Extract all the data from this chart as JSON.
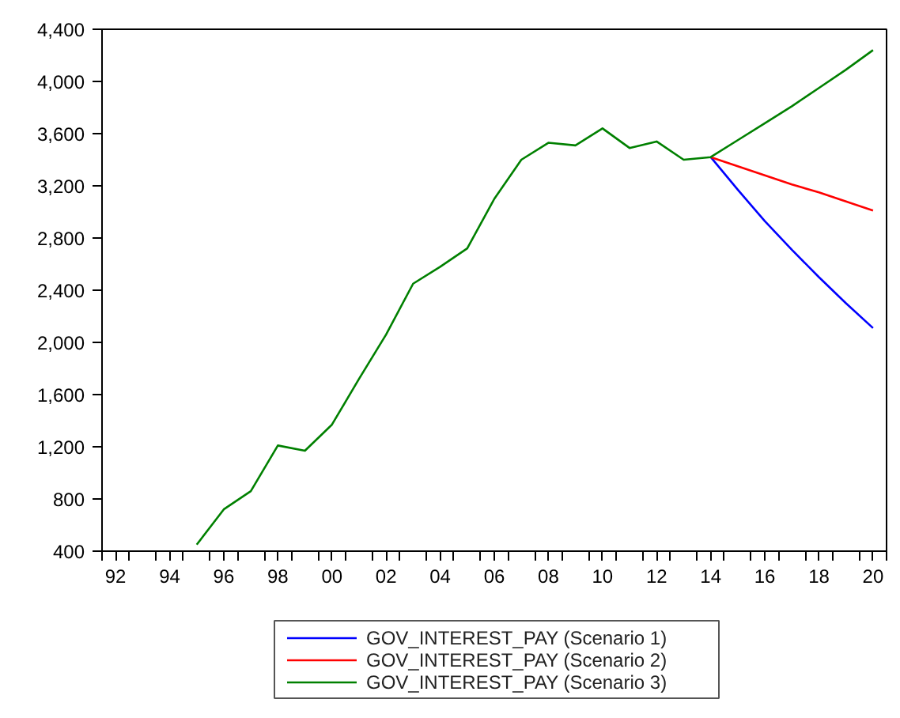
{
  "chart_data": {
    "type": "line",
    "x": [
      1995,
      1996,
      1997,
      1998,
      1999,
      2000,
      2001,
      2002,
      2003,
      2004,
      2005,
      2006,
      2007,
      2008,
      2009,
      2010,
      2011,
      2012,
      2013,
      2014,
      2015,
      2016,
      2017,
      2018,
      2019,
      2020
    ],
    "series": [
      {
        "name": "GOV_INTEREST_PAY (Scenario 1)",
        "color": "#0000ff",
        "values": [
          null,
          null,
          null,
          null,
          null,
          null,
          null,
          null,
          null,
          null,
          null,
          null,
          null,
          null,
          null,
          null,
          null,
          null,
          null,
          3420,
          3170,
          2930,
          2710,
          2500,
          2300,
          2110
        ]
      },
      {
        "name": "GOV_INTEREST_PAY (Scenario 2)",
        "color": "#ff0000",
        "values": [
          null,
          null,
          null,
          null,
          null,
          null,
          null,
          null,
          null,
          null,
          null,
          null,
          null,
          null,
          null,
          null,
          null,
          null,
          null,
          3420,
          3350,
          3280,
          3210,
          3150,
          3080,
          3010
        ]
      },
      {
        "name": "GOV_INTEREST_PAY (Scenario 3)",
        "color": "#008000",
        "values": [
          450,
          720,
          860,
          1210,
          1170,
          1370,
          1720,
          2060,
          2450,
          2580,
          2720,
          3100,
          3400,
          3530,
          3510,
          3640,
          3490,
          3540,
          3400,
          3420,
          3550,
          3680,
          3810,
          3950,
          4090,
          4240
        ]
      }
    ],
    "xlim": [
      1991.5,
      2020.5
    ],
    "xticks": [
      {
        "value": 1991.5,
        "label": null
      },
      {
        "value": 1992,
        "label": "92"
      },
      {
        "value": 1992.5,
        "label": null
      },
      {
        "value": 1993.5,
        "label": null
      },
      {
        "value": 1994,
        "label": "94"
      },
      {
        "value": 1994.5,
        "label": null
      },
      {
        "value": 1995.5,
        "label": null
      },
      {
        "value": 1996,
        "label": "96"
      },
      {
        "value": 1996.5,
        "label": null
      },
      {
        "value": 1997.5,
        "label": null
      },
      {
        "value": 1998,
        "label": "98"
      },
      {
        "value": 1998.5,
        "label": null
      },
      {
        "value": 1999.5,
        "label": null
      },
      {
        "value": 2000,
        "label": "00"
      },
      {
        "value": 2000.5,
        "label": null
      },
      {
        "value": 2001.5,
        "label": null
      },
      {
        "value": 2002,
        "label": "02"
      },
      {
        "value": 2002.5,
        "label": null
      },
      {
        "value": 2003.5,
        "label": null
      },
      {
        "value": 2004,
        "label": "04"
      },
      {
        "value": 2004.5,
        "label": null
      },
      {
        "value": 2005.5,
        "label": null
      },
      {
        "value": 2006,
        "label": "06"
      },
      {
        "value": 2006.5,
        "label": null
      },
      {
        "value": 2007.5,
        "label": null
      },
      {
        "value": 2008,
        "label": "08"
      },
      {
        "value": 2008.5,
        "label": null
      },
      {
        "value": 2009.5,
        "label": null
      },
      {
        "value": 2010,
        "label": "10"
      },
      {
        "value": 2010.5,
        "label": null
      },
      {
        "value": 2011.5,
        "label": null
      },
      {
        "value": 2012,
        "label": "12"
      },
      {
        "value": 2012.5,
        "label": null
      },
      {
        "value": 2013.5,
        "label": null
      },
      {
        "value": 2014,
        "label": "14"
      },
      {
        "value": 2014.5,
        "label": null
      },
      {
        "value": 2015.5,
        "label": null
      },
      {
        "value": 2016,
        "label": "16"
      },
      {
        "value": 2016.5,
        "label": null
      },
      {
        "value": 2017.5,
        "label": null
      },
      {
        "value": 2018,
        "label": "18"
      },
      {
        "value": 2018.5,
        "label": null
      },
      {
        "value": 2019.5,
        "label": null
      },
      {
        "value": 2020,
        "label": "20"
      },
      {
        "value": 2020.5,
        "label": null
      }
    ],
    "ylim": [
      400,
      4400
    ],
    "yticks": [
      {
        "value": 400,
        "label": "400"
      },
      {
        "value": 800,
        "label": "800"
      },
      {
        "value": 1200,
        "label": "1,200"
      },
      {
        "value": 1600,
        "label": "1,600"
      },
      {
        "value": 2000,
        "label": "2,000"
      },
      {
        "value": 2400,
        "label": "2,400"
      },
      {
        "value": 2800,
        "label": "2,800"
      },
      {
        "value": 3200,
        "label": "3,200"
      },
      {
        "value": 3600,
        "label": "3,600"
      },
      {
        "value": 4000,
        "label": "4,000"
      },
      {
        "value": 4400,
        "label": "4,400"
      }
    ],
    "grid": false,
    "legend": "bottom"
  }
}
